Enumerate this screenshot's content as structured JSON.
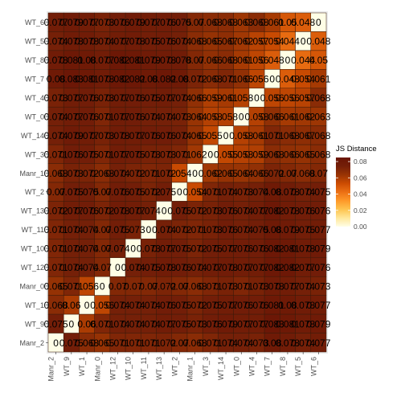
{
  "chart_data": {
    "type": "heatmap",
    "title": "",
    "xlabel": "",
    "ylabel": "",
    "x_labels": [
      "Manr_2",
      "WT_9",
      "WT_1",
      "Manr_0",
      "WT_12",
      "WT_10",
      "WT_11",
      "WT_13",
      "WT_2",
      "Manr_1",
      "WT_3",
      "WT_14",
      "WT_0",
      "WT_4",
      "WT_7",
      "WT_8",
      "WT_5",
      "WT_6"
    ],
    "y_labels": [
      "WT_6",
      "WT_5",
      "WT_8",
      "WT_7",
      "WT_4",
      "WT_0",
      "WT_14",
      "WT_3",
      "Manr_1",
      "WT_2",
      "WT_13",
      "WT_11",
      "WT_10",
      "WT_12",
      "Manr_0",
      "WT_1",
      "WT_9",
      "Manr_2"
    ],
    "values": [
      [
        0.077,
        0.079,
        0.077,
        0.073,
        0.076,
        0.079,
        0.077,
        0.076,
        0.075,
        0.07,
        0.068,
        0.068,
        0.063,
        0.068,
        0.061,
        0.05,
        0.048,
        0
      ],
      [
        0.074,
        0.078,
        0.078,
        0.074,
        0.077,
        0.078,
        0.075,
        0.076,
        0.074,
        0.068,
        0.065,
        0.067,
        0.062,
        0.057,
        0.054,
        0.044,
        0,
        0.048
      ],
      [
        0.078,
        0.081,
        0.08,
        0.077,
        0.082,
        0.081,
        0.079,
        0.078,
        0.078,
        0.07,
        0.066,
        0.068,
        0.061,
        0.056,
        0.048,
        0,
        0.044,
        0.05
      ],
      [
        0.08,
        0.083,
        0.081,
        0.078,
        0.082,
        0.082,
        0.08,
        0.082,
        0.08,
        0.072,
        0.068,
        0.071,
        0.066,
        0.056,
        0,
        0.048,
        0.054,
        0.061
      ],
      [
        0.073,
        0.077,
        0.076,
        0.073,
        0.077,
        0.076,
        0.075,
        0.077,
        0.074,
        0.066,
        0.059,
        0.061,
        0.058,
        0,
        0.056,
        0.056,
        0.057,
        0.068
      ],
      [
        0.074,
        0.077,
        0.076,
        0.071,
        0.077,
        0.076,
        0.074,
        0.074,
        0.073,
        0.064,
        0.058,
        0.058,
        0,
        0.058,
        0.066,
        0.061,
        0.062,
        0.063
      ],
      [
        0.074,
        0.079,
        0.077,
        0.073,
        0.078,
        0.077,
        0.076,
        0.076,
        0.074,
        0.065,
        0.055,
        0,
        0.058,
        0.061,
        0.071,
        0.068,
        0.067,
        0.068
      ],
      [
        0.071,
        0.076,
        0.075,
        0.071,
        0.077,
        0.075,
        0.073,
        0.073,
        0.071,
        0.062,
        0,
        0.055,
        0.058,
        0.059,
        0.068,
        0.066,
        0.065,
        0.068
      ],
      [
        0.068,
        0.073,
        0.072,
        0.068,
        0.074,
        0.072,
        0.071,
        0.072,
        0.054,
        0,
        0.062,
        0.065,
        0.064,
        0.066,
        0.072,
        0.07,
        0.068,
        0.07
      ],
      [
        0.07,
        0.075,
        0.075,
        0.07,
        0.076,
        0.075,
        0.072,
        0.075,
        0,
        0.054,
        0.071,
        0.074,
        0.073,
        0.074,
        0.08,
        0.078,
        0.074,
        0.075
      ],
      [
        0.072,
        0.077,
        0.076,
        0.072,
        0.078,
        0.077,
        0.074,
        0,
        0.075,
        0.072,
        0.073,
        0.076,
        0.074,
        0.077,
        0.082,
        0.078,
        0.076,
        0.076
      ],
      [
        0.071,
        0.074,
        0.074,
        0.07,
        0.075,
        0.073,
        0,
        0.074,
        0.072,
        0.071,
        0.073,
        0.076,
        0.074,
        0.075,
        0.08,
        0.079,
        0.075,
        0.077
      ],
      [
        0.071,
        0.074,
        0.074,
        0.07,
        0.074,
        0,
        0.073,
        0.077,
        0.075,
        0.072,
        0.075,
        0.077,
        0.076,
        0.076,
        0.082,
        0.081,
        0.078,
        0.079
      ],
      [
        0.071,
        0.074,
        0.074,
        0.07,
        0,
        0.074,
        0.075,
        0.078,
        0.076,
        0.074,
        0.077,
        0.078,
        0.077,
        0.077,
        0.082,
        0.082,
        0.077,
        0.076
      ],
      [
        0.065,
        0.071,
        0.056,
        0,
        0.07,
        0.07,
        0.07,
        0.072,
        0.07,
        0.068,
        0.071,
        0.073,
        0.071,
        0.073,
        0.078,
        0.077,
        0.074,
        0.073
      ],
      [
        0.068,
        0.06,
        0,
        0.056,
        0.074,
        0.074,
        0.074,
        0.076,
        0.075,
        0.072,
        0.075,
        0.077,
        0.076,
        0.076,
        0.081,
        0.08,
        0.078,
        0.077
      ],
      [
        0.075,
        0,
        0.06,
        0.071,
        0.074,
        0.074,
        0.074,
        0.077,
        0.075,
        0.073,
        0.076,
        0.079,
        0.077,
        0.077,
        0.083,
        0.081,
        0.078,
        0.079
      ],
      [
        0,
        0.075,
        0.068,
        0.065,
        0.071,
        0.071,
        0.071,
        0.072,
        0.07,
        0.068,
        0.071,
        0.074,
        0.074,
        0.073,
        0.08,
        0.078,
        0.074,
        0.077
      ]
    ],
    "legend": {
      "title": "JS Distance",
      "ticks": [
        "0.00",
        "0.02",
        "0.04",
        "0.06",
        "0.08"
      ],
      "tick_values": [
        0,
        0.02,
        0.04,
        0.06,
        0.08
      ],
      "range": [
        0,
        0.085
      ],
      "placement": "right"
    },
    "colors": {
      "scale": [
        "#fffee6",
        "#ffe79a",
        "#fec44f",
        "#fe9929",
        "#ec7014",
        "#cc4c02",
        "#993404",
        "#741f08",
        "#6a1505"
      ],
      "panel_background": "#ebebeb",
      "cell_border": "#3a1a0a",
      "label_color": "#000000",
      "tick_label_color": "#4d4d4d"
    },
    "grid": false
  }
}
